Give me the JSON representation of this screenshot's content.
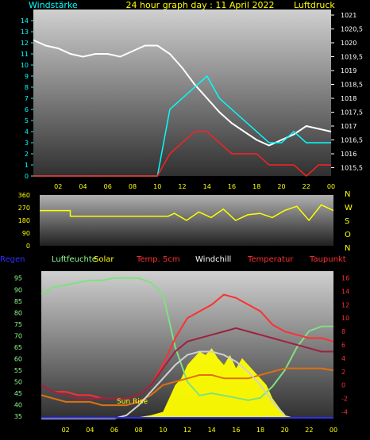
{
  "chart_data": [
    {
      "type": "line",
      "title": "24 hour graph day : 11 April 2022",
      "left_label": "Windstärke",
      "right_label": "Luftdruck",
      "x_ticks": [
        "02",
        "04",
        "06",
        "08",
        "10",
        "12",
        "14",
        "16",
        "18",
        "20",
        "22",
        "00"
      ],
      "y_left_ticks": [
        "0",
        "1",
        "2",
        "3",
        "4",
        "5",
        "6",
        "7",
        "8",
        "9",
        "10",
        "11",
        "12",
        "13",
        "14"
      ],
      "y_right_ticks": [
        "1015,5",
        "1016",
        "1016,5",
        "1017",
        "1017,5",
        "1018",
        "1018,5",
        "1019",
        "1019,5",
        "1020",
        "1020,5",
        "1021"
      ],
      "ylim_left": [
        0,
        15
      ],
      "ylim_right": [
        1015.2,
        1021.2
      ],
      "series": [
        {
          "color": "#ffffff",
          "axis": "right",
          "x": [
            0,
            1,
            2,
            3,
            4,
            5,
            6,
            7,
            8,
            9,
            10,
            11,
            12,
            13,
            14,
            15,
            16,
            17,
            18,
            19,
            20,
            21,
            22,
            23,
            24
          ],
          "y": [
            1020.1,
            1019.9,
            1019.8,
            1019.6,
            1019.5,
            1019.6,
            1019.6,
            1019.5,
            1019.7,
            1019.9,
            1019.9,
            1019.6,
            1019.1,
            1018.5,
            1018.0,
            1017.5,
            1017.1,
            1016.8,
            1016.5,
            1016.3,
            1016.5,
            1016.7,
            1017.0,
            1016.9,
            1016.8
          ]
        },
        {
          "color": "#00ffff",
          "axis": "left",
          "x": [
            0,
            1,
            2,
            3,
            4,
            5,
            6,
            7,
            8,
            9,
            10,
            11,
            12,
            13,
            14,
            15,
            16,
            17,
            18,
            19,
            20,
            21,
            22,
            23,
            24
          ],
          "y": [
            0,
            0,
            0,
            0,
            0,
            0,
            0,
            0,
            0,
            0,
            0,
            6,
            7,
            8,
            9,
            7,
            6,
            5,
            4,
            3,
            3,
            4,
            3,
            3,
            3
          ]
        },
        {
          "color": "#ff2020",
          "axis": "left",
          "x": [
            0,
            1,
            2,
            3,
            4,
            5,
            6,
            7,
            8,
            9,
            10,
            11,
            12,
            13,
            14,
            15,
            16,
            17,
            18,
            19,
            20,
            21,
            22,
            23,
            24
          ],
          "y": [
            0,
            0,
            0,
            0,
            0,
            0,
            0,
            0,
            0,
            0,
            0,
            2,
            3,
            4,
            4,
            3,
            2,
            2,
            2,
            1,
            1,
            1,
            0,
            1,
            1
          ]
        }
      ]
    },
    {
      "type": "line",
      "title": "",
      "y_ticks": [
        "360",
        "270",
        "180",
        "90",
        "0"
      ],
      "right_labels": [
        "N",
        "W",
        "S",
        "O",
        "N"
      ],
      "ylim": [
        0,
        360
      ],
      "series": [
        {
          "color": "#ffff00",
          "x": [
            0,
            2.5,
            2.5,
            10.5,
            11,
            12,
            13,
            14,
            15,
            16,
            17,
            18,
            19,
            20,
            21,
            22,
            23,
            24
          ],
          "y": [
            250,
            250,
            210,
            210,
            230,
            180,
            240,
            200,
            260,
            180,
            220,
            230,
            200,
            250,
            280,
            180,
            290,
            250
          ]
        }
      ]
    },
    {
      "type": "line",
      "title": "",
      "legend": [
        "Regen",
        "Luftfeuchte",
        "Solar",
        "Temp. 5cm",
        "Windchill",
        "Temperatur",
        "Taupunkt"
      ],
      "legend_colors": [
        "#3030ff",
        "#90ff90",
        "#ffff00",
        "#ff3030",
        "#ffffff",
        "#ff3030",
        "#ff3030"
      ],
      "y_left_ticks": [
        "35",
        "40",
        "45",
        "50",
        "55",
        "60",
        "65",
        "70",
        "75",
        "80",
        "85",
        "90",
        "95"
      ],
      "y_right_ticks": [
        "-4",
        "-2",
        "0",
        "2",
        "4",
        "6",
        "8",
        "10",
        "12",
        "14",
        "16"
      ],
      "ylim_left": [
        34,
        98
      ],
      "ylim_right": [
        -5,
        17
      ],
      "annotation": "Sun Rise",
      "series": [
        {
          "name": "Luftfeuchte",
          "color": "#80e080",
          "axis": "left",
          "x": [
            0,
            1,
            2,
            3,
            4,
            5,
            6,
            7,
            8,
            9,
            10,
            11,
            12,
            13,
            14,
            15,
            16,
            17,
            18,
            19,
            20,
            21,
            22,
            23,
            24
          ],
          "y": [
            88,
            91,
            92,
            93,
            94,
            94,
            95,
            95,
            95,
            93,
            88,
            65,
            50,
            44,
            45,
            44,
            43,
            42,
            43,
            48,
            55,
            65,
            72,
            74,
            74
          ]
        },
        {
          "name": "Temp. 5cm",
          "color": "#ff3030",
          "axis": "right",
          "x": [
            0,
            1,
            2,
            3,
            4,
            5,
            6,
            7,
            8,
            9,
            10,
            11,
            12,
            13,
            14,
            15,
            16,
            17,
            18,
            19,
            20,
            21,
            22,
            23,
            24
          ],
          "y": [
            0,
            -1,
            -1,
            -1.5,
            -1.5,
            -2,
            -2,
            -2,
            -1.5,
            0,
            3,
            7,
            10,
            11,
            12,
            13.5,
            13,
            12,
            11,
            9,
            8,
            7.5,
            7,
            7,
            6.5
          ]
        },
        {
          "name": "Temperatur",
          "color": "#a02040",
          "axis": "right",
          "x": [
            0,
            1,
            2,
            3,
            4,
            5,
            6,
            7,
            8,
            9,
            10,
            11,
            12,
            13,
            14,
            15,
            16,
            17,
            18,
            19,
            20,
            21,
            22,
            23,
            24
          ],
          "y": [
            0,
            -1,
            -1.5,
            -2,
            -2,
            -2,
            -2,
            -2,
            -1.5,
            0,
            2.5,
            5,
            6.5,
            7,
            7.5,
            8,
            8.5,
            8,
            7.5,
            7,
            6.5,
            6,
            5.5,
            5,
            5
          ]
        },
        {
          "name": "Taupunkt",
          "color": "#e07010",
          "axis": "right",
          "x": [
            0,
            1,
            2,
            3,
            4,
            5,
            6,
            7,
            8,
            9,
            10,
            11,
            12,
            13,
            14,
            15,
            16,
            17,
            18,
            19,
            20,
            21,
            22,
            23,
            24
          ],
          "y": [
            -1.5,
            -2,
            -2.5,
            -2.5,
            -2.5,
            -3,
            -3,
            -3,
            -2.5,
            -1.5,
            0,
            0.5,
            1,
            1.5,
            1.5,
            1,
            1,
            1,
            1.5,
            2,
            2.5,
            2.5,
            2.5,
            2.5,
            2.2
          ]
        },
        {
          "name": "Windchill",
          "color": "#d0d0d0",
          "axis": "right",
          "x": [
            0,
            6,
            7,
            8,
            9,
            10,
            11,
            12,
            13,
            14,
            15,
            16,
            17,
            18,
            19,
            20
          ],
          "y": [
            -5,
            -5,
            -4.5,
            -3,
            -1,
            1,
            3,
            4.5,
            5,
            5,
            4.5,
            3.5,
            2,
            0,
            -2.5,
            -4.5
          ]
        },
        {
          "name": "Solar",
          "color": "#ffff00",
          "axis": "right",
          "fill": true,
          "x": [
            0,
            7,
            8,
            9,
            10,
            10.5,
            11,
            11.5,
            12,
            12.5,
            13,
            13.5,
            14,
            14.5,
            15,
            15.5,
            16,
            16.5,
            17,
            17.5,
            18,
            18.5,
            19,
            20,
            21,
            22,
            23,
            24
          ],
          "y": [
            -5,
            -5,
            -4.8,
            -4.5,
            -4,
            -2,
            0,
            1,
            3,
            4,
            5,
            4.5,
            5.5,
            4,
            3,
            4.5,
            2.5,
            4,
            3,
            2,
            1,
            0,
            -2,
            -4.5,
            -5,
            -5,
            -5,
            -5
          ]
        }
      ]
    }
  ]
}
